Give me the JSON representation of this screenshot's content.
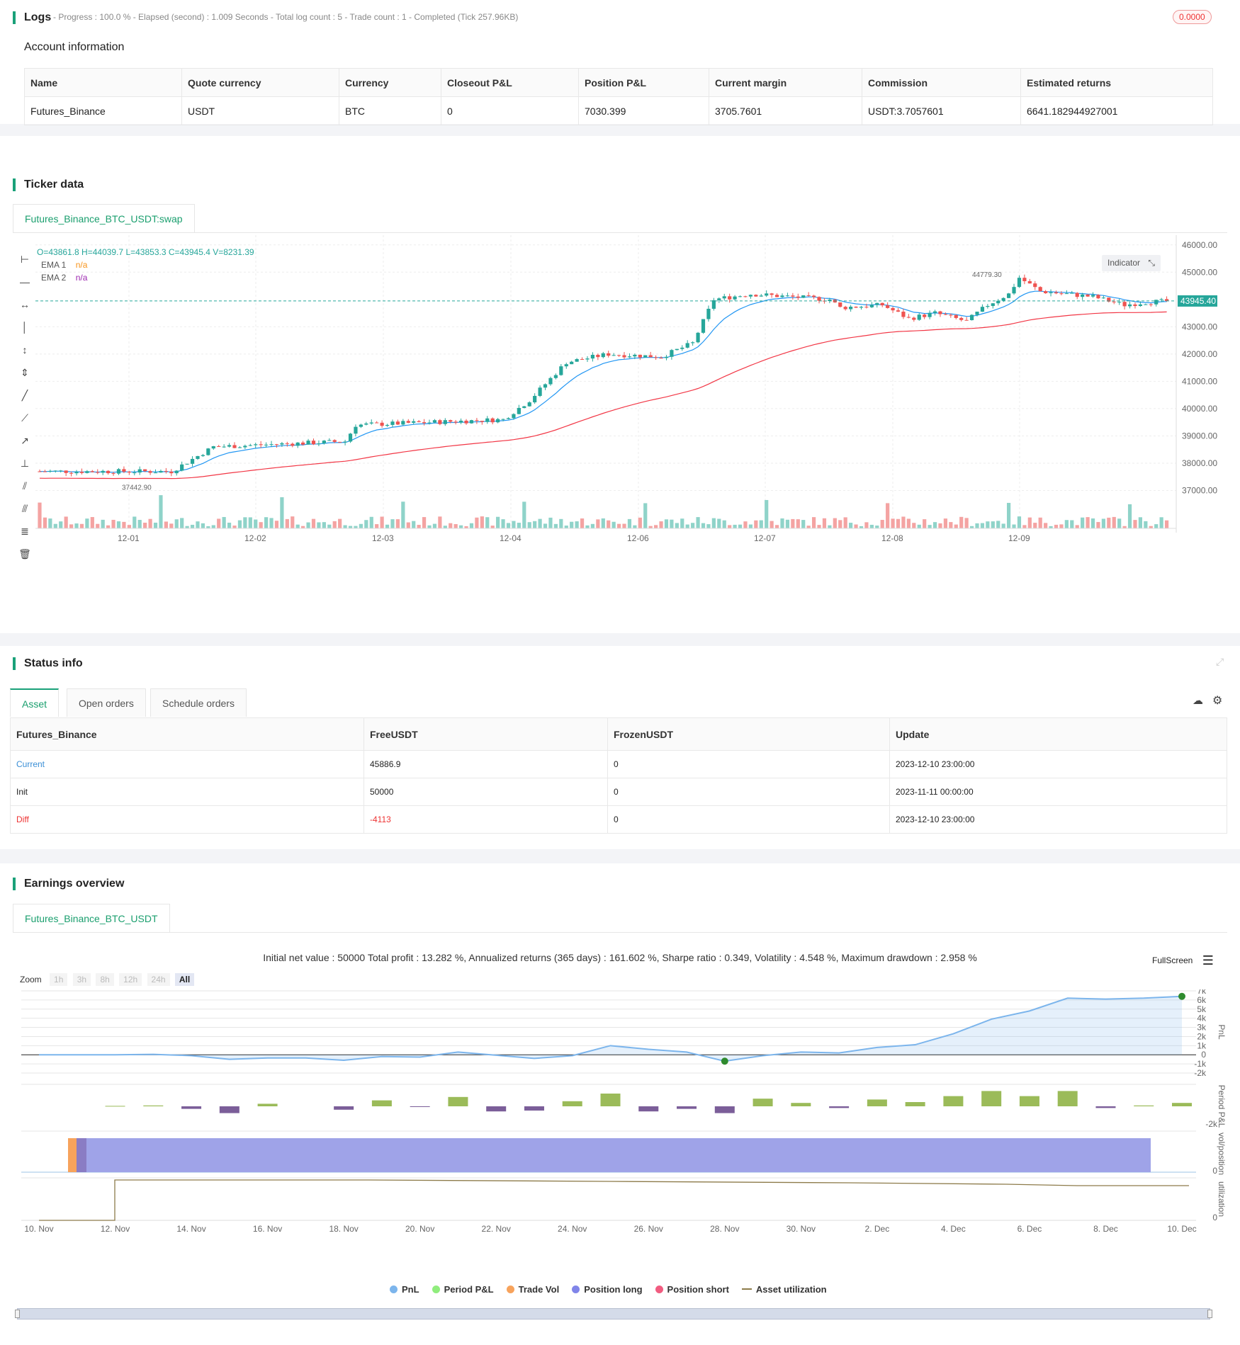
{
  "logs": {
    "title": "Logs",
    "summary": "- Progress : 100.0 % - Elapsed (second) : 1.009 Seconds - Total log count : 5 - Trade count : 1 - Completed (Tick 257.96KB)",
    "badge": "0.0000"
  },
  "account": {
    "title": "Account information",
    "headers": [
      "Name",
      "Quote currency",
      "Currency",
      "Closeout P&L",
      "Position P&L",
      "Current margin",
      "Commission",
      "Estimated returns"
    ],
    "row": [
      "Futures_Binance",
      "USDT",
      "BTC",
      "0",
      "7030.399",
      "3705.7601",
      "USDT:3.7057601",
      "6641.182944927001"
    ]
  },
  "ticker": {
    "title": "Ticker data",
    "tab": "Futures_Binance_BTC_USDT:swap",
    "ohlc": "O=43861.8 H=44039.7 L=43853.3 C=43945.4 V=8231.39",
    "ema1_label": "EMA 1",
    "ema1_value": "n/a",
    "ema2_label": "EMA 2",
    "ema2_value": "n/a",
    "indicator_button": "Indicator",
    "last_price": "43945.40",
    "high_marker": "44779.30",
    "low_marker": "37442.90",
    "y_ticks": [
      "46000.00",
      "45000.00",
      "43000.00",
      "42000.00",
      "41000.00",
      "40000.00",
      "39000.00",
      "38000.00",
      "37000.00"
    ],
    "x_ticks": [
      "12-01",
      "12-02",
      "12-03",
      "12-04",
      "12-06",
      "12-07",
      "12-08",
      "12-09"
    ]
  },
  "status": {
    "title": "Status info",
    "tabs": [
      "Asset",
      "Open orders",
      "Schedule orders"
    ],
    "headers": [
      "Futures_Binance",
      "FreeUSDT",
      "FrozenUSDT",
      "Update"
    ],
    "rows": [
      {
        "name": "Current",
        "free": "45886.9",
        "frozen": "0",
        "update": "2023-12-10 23:00:00"
      },
      {
        "name": "Init",
        "free": "50000",
        "frozen": "0",
        "update": "2023-11-11 00:00:00"
      },
      {
        "name": "Diff",
        "free": "-4113",
        "frozen": "0",
        "update": "2023-12-10 23:00:00"
      }
    ]
  },
  "earnings": {
    "title": "Earnings overview",
    "tab": "Futures_Binance_BTC_USDT",
    "summary": "Initial net value : 50000 Total profit : 13.282 %, Annualized returns (365 days) : 161.602 %, Sharpe ratio : 0.349, Volatility : 4.548 %, Maximum drawdown : 2.958 %",
    "fullscreen": "FullScreen",
    "zoom_label": "Zoom",
    "zoom_buttons": [
      "1h",
      "3h",
      "8h",
      "12h",
      "24h",
      "All"
    ],
    "pnl_ticks": [
      "7k",
      "6k",
      "5k",
      "4k",
      "3k",
      "2k",
      "1k",
      "0",
      "-1k",
      "-2k"
    ],
    "period_tick": "-2k",
    "vol_tick": "0",
    "util_tick": "0",
    "axis_titles": [
      "PnL",
      "Period P&L",
      "vol/position",
      "utilization"
    ],
    "x_ticks": [
      "10. Nov",
      "12. Nov",
      "14. Nov",
      "16. Nov",
      "18. Nov",
      "20. Nov",
      "22. Nov",
      "24. Nov",
      "26. Nov",
      "28. Nov",
      "30. Nov",
      "2. Dec",
      "4. Dec",
      "6. Dec",
      "8. Dec",
      "10. Dec"
    ],
    "legend": [
      {
        "label": "PnL",
        "color": "#7cb5ec"
      },
      {
        "label": "Period P&L",
        "color": "#90ed7d"
      },
      {
        "label": "Trade Vol",
        "color": "#f7a35c"
      },
      {
        "label": "Position long",
        "color": "#8085e9"
      },
      {
        "label": "Position short",
        "color": "#f15c80"
      },
      {
        "label": "Asset utilization",
        "color": "#8d7b4a"
      }
    ]
  },
  "chart_data": {
    "type": "line",
    "x": [
      "10. Nov",
      "11. Nov",
      "12. Nov",
      "13. Nov",
      "14. Nov",
      "15. Nov",
      "16. Nov",
      "17. Nov",
      "18. Nov",
      "19. Nov",
      "20. Nov",
      "21. Nov",
      "22. Nov",
      "23. Nov",
      "24. Nov",
      "25. Nov",
      "26. Nov",
      "27. Nov",
      "28. Nov",
      "29. Nov",
      "30. Nov",
      "1. Dec",
      "2. Dec",
      "3. Dec",
      "4. Dec",
      "5. Dec",
      "6. Dec",
      "7. Dec",
      "8. Dec",
      "9. Dec",
      "10. Dec"
    ],
    "series": [
      {
        "name": "PnL",
        "values": [
          0,
          0,
          0,
          50,
          -100,
          -500,
          -350,
          -350,
          -600,
          -200,
          -250,
          300,
          -50,
          -400,
          -100,
          1000,
          600,
          300,
          -700,
          -100,
          300,
          200,
          800,
          1100,
          2300,
          3900,
          4800,
          6200,
          6100,
          6200,
          6400
        ]
      },
      {
        "name": "Period P&L",
        "values": [
          0,
          0,
          50,
          100,
          -300,
          -800,
          300,
          0,
          -400,
          700,
          -50,
          1100,
          -600,
          -500,
          600,
          1500,
          -600,
          -300,
          -800,
          900,
          400,
          -200,
          800,
          500,
          1200,
          1800,
          1200,
          1800,
          -200,
          100,
          400
        ]
      }
    ],
    "ylim": [
      -2000,
      7000
    ]
  }
}
